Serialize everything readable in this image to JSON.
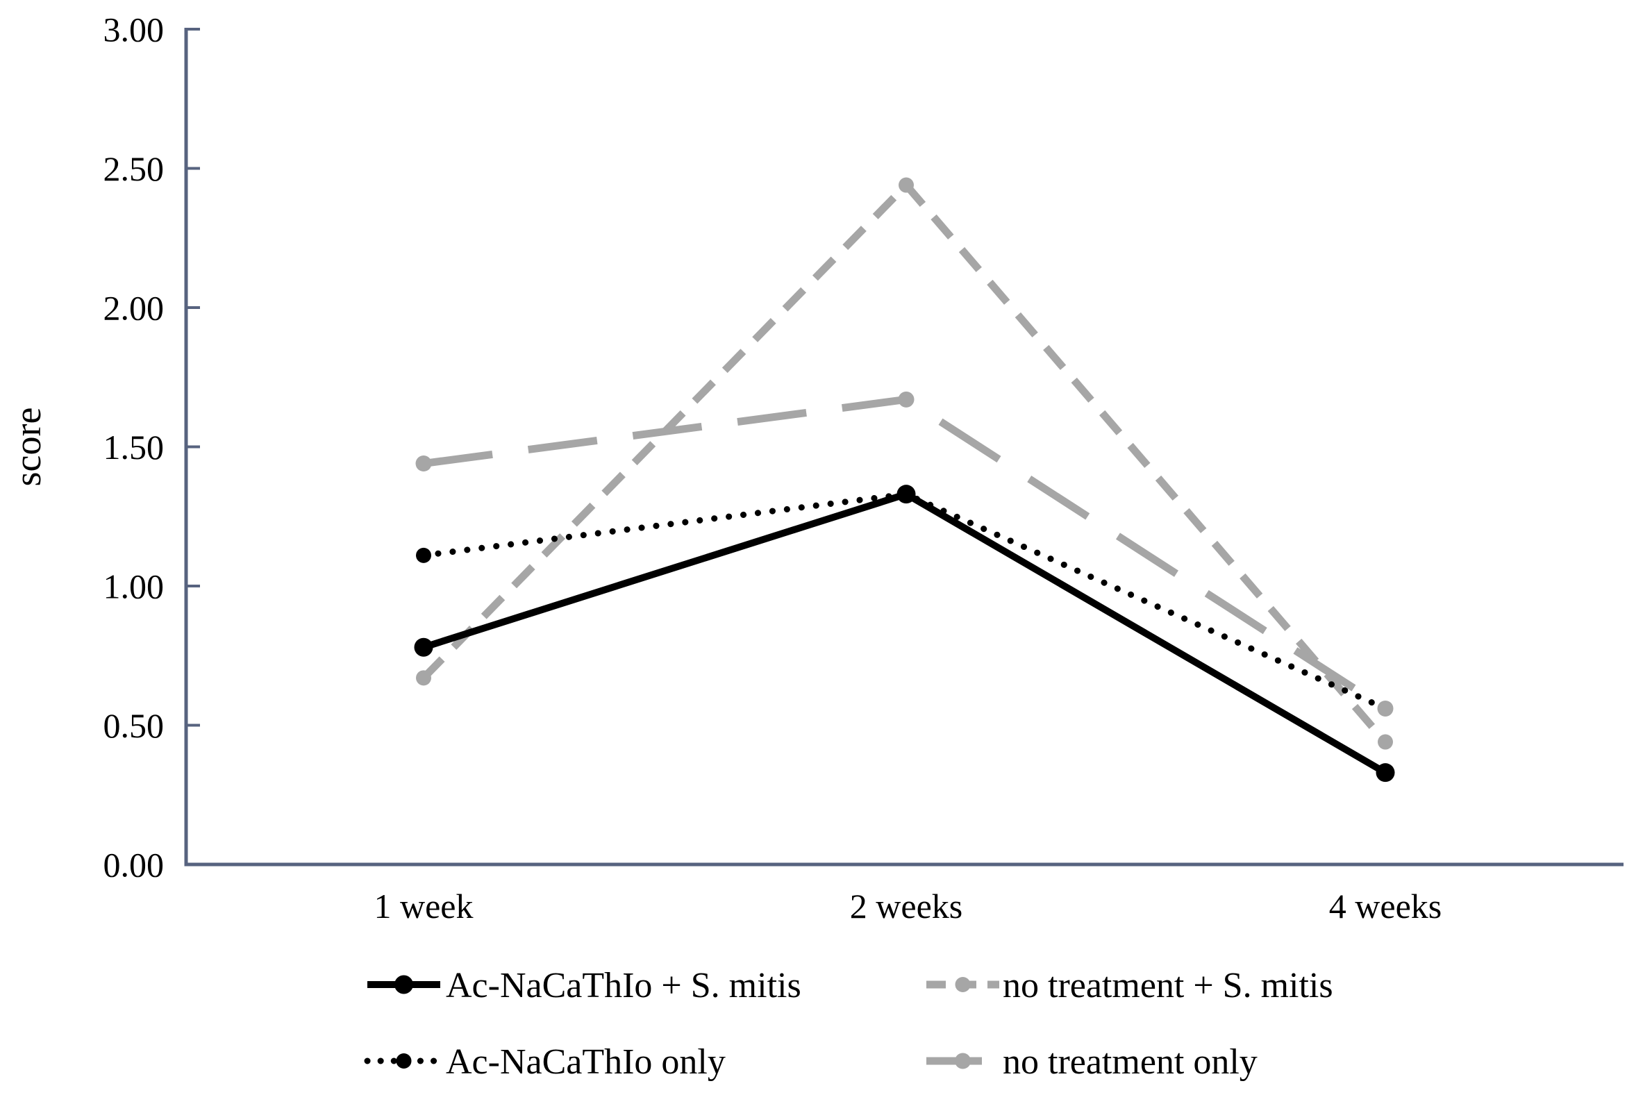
{
  "figure": {
    "background": "#ffffff",
    "description": "Line chart of score over time for four treatment groups"
  },
  "chart_data": {
    "type": "line",
    "title": "",
    "xlabel": "",
    "ylabel": "score",
    "categories": [
      "1 week",
      "2 weeks",
      "4 weeks"
    ],
    "ylim": [
      0,
      3
    ],
    "ytick_values": [
      0,
      0.5,
      1,
      1.5,
      2,
      2.5,
      3
    ],
    "ytick_labels": [
      "0.00",
      "0.50",
      "1.00",
      "1.50",
      "2.00",
      "2.50",
      "3.00"
    ],
    "grid": false,
    "legend_position": "bottom",
    "axis_color": "#57637F",
    "series": [
      {
        "name": "Ac-NaCaThIo + S. mitis",
        "values": [
          0.78,
          1.33,
          0.33
        ],
        "color": "#000000",
        "line_style": "solid",
        "marker": "circle"
      },
      {
        "name": "no treatment + S. mitis",
        "values": [
          0.67,
          2.44,
          0.44
        ],
        "color": "#A6A6A6",
        "line_style": "short-dash",
        "marker": "circle"
      },
      {
        "name": "Ac-NaCaThIo only",
        "values": [
          1.11,
          1.33,
          0.56
        ],
        "color": "#000000",
        "line_style": "dotted",
        "marker": "circle"
      },
      {
        "name": "no treatment only",
        "values": [
          1.44,
          1.67,
          0.56
        ],
        "color": "#A6A6A6",
        "line_style": "long-dash",
        "marker": "circle"
      }
    ]
  }
}
